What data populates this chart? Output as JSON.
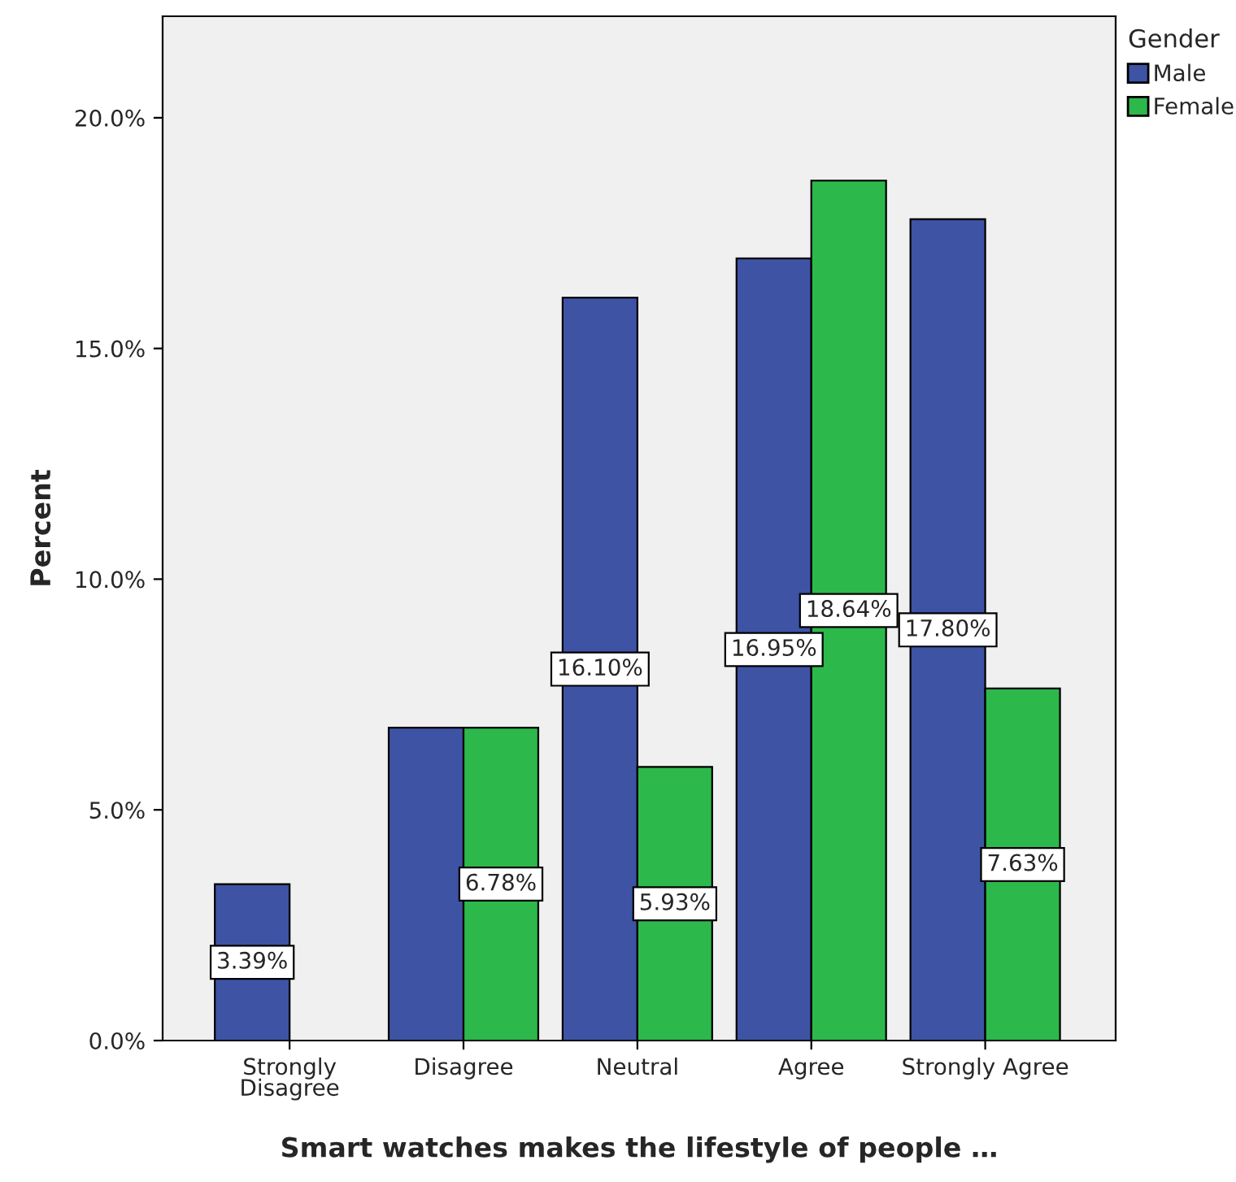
{
  "chart_data": {
    "type": "bar",
    "xlabel": "Smart watches makes the lifestyle of people …",
    "ylabel": "Percent",
    "legend_title": "Gender",
    "categories": [
      "Strongly Disagree",
      "Disagree",
      "Neutral",
      "Agree",
      "Strongly Agree"
    ],
    "series": [
      {
        "name": "Male",
        "color": "#3e53a4",
        "values": [
          3.39,
          6.78,
          16.1,
          16.95,
          17.8
        ],
        "value_labels": [
          "3.39%",
          null,
          "16.10%",
          "16.95%",
          "17.80%"
        ]
      },
      {
        "name": "Female",
        "color": "#2db84b",
        "values": [
          null,
          6.78,
          5.93,
          18.64,
          7.63
        ],
        "value_labels": [
          null,
          "6.78%",
          "5.93%",
          "18.64%",
          "7.63%"
        ]
      }
    ],
    "ylim": [
      0,
      22.2
    ],
    "yticks": [
      {
        "value": 0,
        "label": "0.0%"
      },
      {
        "value": 5,
        "label": "5.0%"
      },
      {
        "value": 10,
        "label": "10.0%"
      },
      {
        "value": 15,
        "label": "15.0%"
      },
      {
        "value": 20,
        "label": "20.0%"
      }
    ],
    "grid": false,
    "legend": "top right"
  }
}
